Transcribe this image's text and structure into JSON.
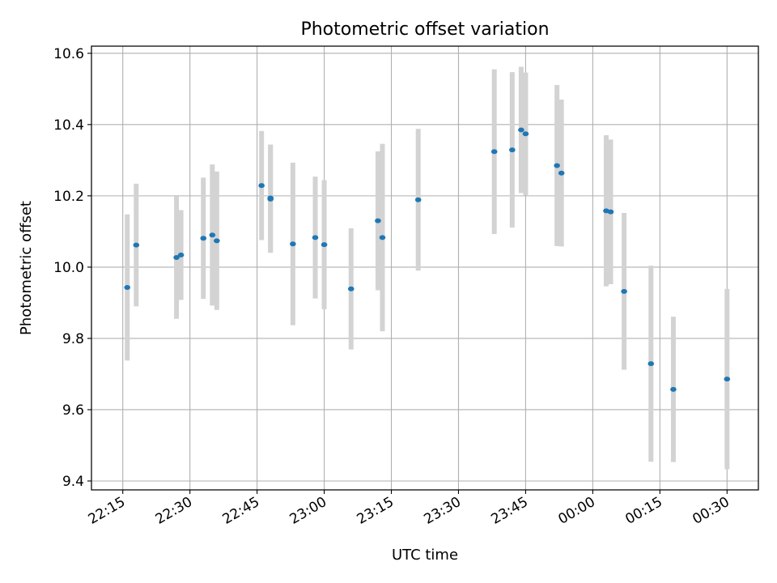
{
  "chart_data": {
    "type": "scatter",
    "title": "Photometric offset variation",
    "xlabel": "UTC time",
    "ylabel": "Photometric offset",
    "x_ticks": [
      "22:15",
      "22:30",
      "22:45",
      "23:00",
      "23:15",
      "23:30",
      "23:45",
      "00:00",
      "00:15",
      "00:30"
    ],
    "xlim": [
      "22:08",
      "00:37"
    ],
    "ylim": [
      9.375,
      10.62
    ],
    "y_ticks": [
      "9.4",
      "9.6",
      "9.8",
      "10.0",
      "10.2",
      "10.4",
      "10.6"
    ],
    "grid": true,
    "marker_color": "#1f77b4",
    "errorbar_color": "#d3d3d3",
    "points": [
      {
        "x": "22:16",
        "y": 9.943,
        "yerr": 0.205
      },
      {
        "x": "22:18",
        "y": 10.062,
        "yerr": 0.172
      },
      {
        "x": "22:27",
        "y": 10.027,
        "yerr": 0.172
      },
      {
        "x": "22:28",
        "y": 10.034,
        "yerr": 0.126
      },
      {
        "x": "22:33",
        "y": 10.081,
        "yerr": 0.17
      },
      {
        "x": "22:35",
        "y": 10.09,
        "yerr": 0.198
      },
      {
        "x": "22:36",
        "y": 10.074,
        "yerr": 0.194
      },
      {
        "x": "22:46",
        "y": 10.229,
        "yerr": 0.153
      },
      {
        "x": "22:48",
        "y": 10.194,
        "yerr": 0.15
      },
      {
        "x": "22:48",
        "y": 10.191,
        "yerr": 0.151
      },
      {
        "x": "22:53",
        "y": 10.065,
        "yerr": 0.228
      },
      {
        "x": "22:58",
        "y": 10.083,
        "yerr": 0.171
      },
      {
        "x": "23:00",
        "y": 10.063,
        "yerr": 0.181
      },
      {
        "x": "23:06",
        "y": 9.939,
        "yerr": 0.17
      },
      {
        "x": "23:12",
        "y": 10.13,
        "yerr": 0.195
      },
      {
        "x": "23:13",
        "y": 10.083,
        "yerr": 0.263
      },
      {
        "x": "23:21",
        "y": 10.189,
        "yerr": 0.199
      },
      {
        "x": "23:38",
        "y": 10.324,
        "yerr": 0.231
      },
      {
        "x": "23:42",
        "y": 10.329,
        "yerr": 0.218
      },
      {
        "x": "23:44",
        "y": 10.385,
        "yerr": 0.177
      },
      {
        "x": "23:45",
        "y": 10.374,
        "yerr": 0.172
      },
      {
        "x": "23:52",
        "y": 10.285,
        "yerr": 0.226
      },
      {
        "x": "23:53",
        "y": 10.264,
        "yerr": 0.206
      },
      {
        "x": "00:03",
        "y": 10.158,
        "yerr": 0.212
      },
      {
        "x": "00:04",
        "y": 10.155,
        "yerr": 0.203
      },
      {
        "x": "00:07",
        "y": 9.932,
        "yerr": 0.22
      },
      {
        "x": "00:13",
        "y": 9.729,
        "yerr": 0.275
      },
      {
        "x": "00:18",
        "y": 9.657,
        "yerr": 0.204
      },
      {
        "x": "00:30",
        "y": 9.686,
        "yerr": 0.253
      }
    ]
  }
}
